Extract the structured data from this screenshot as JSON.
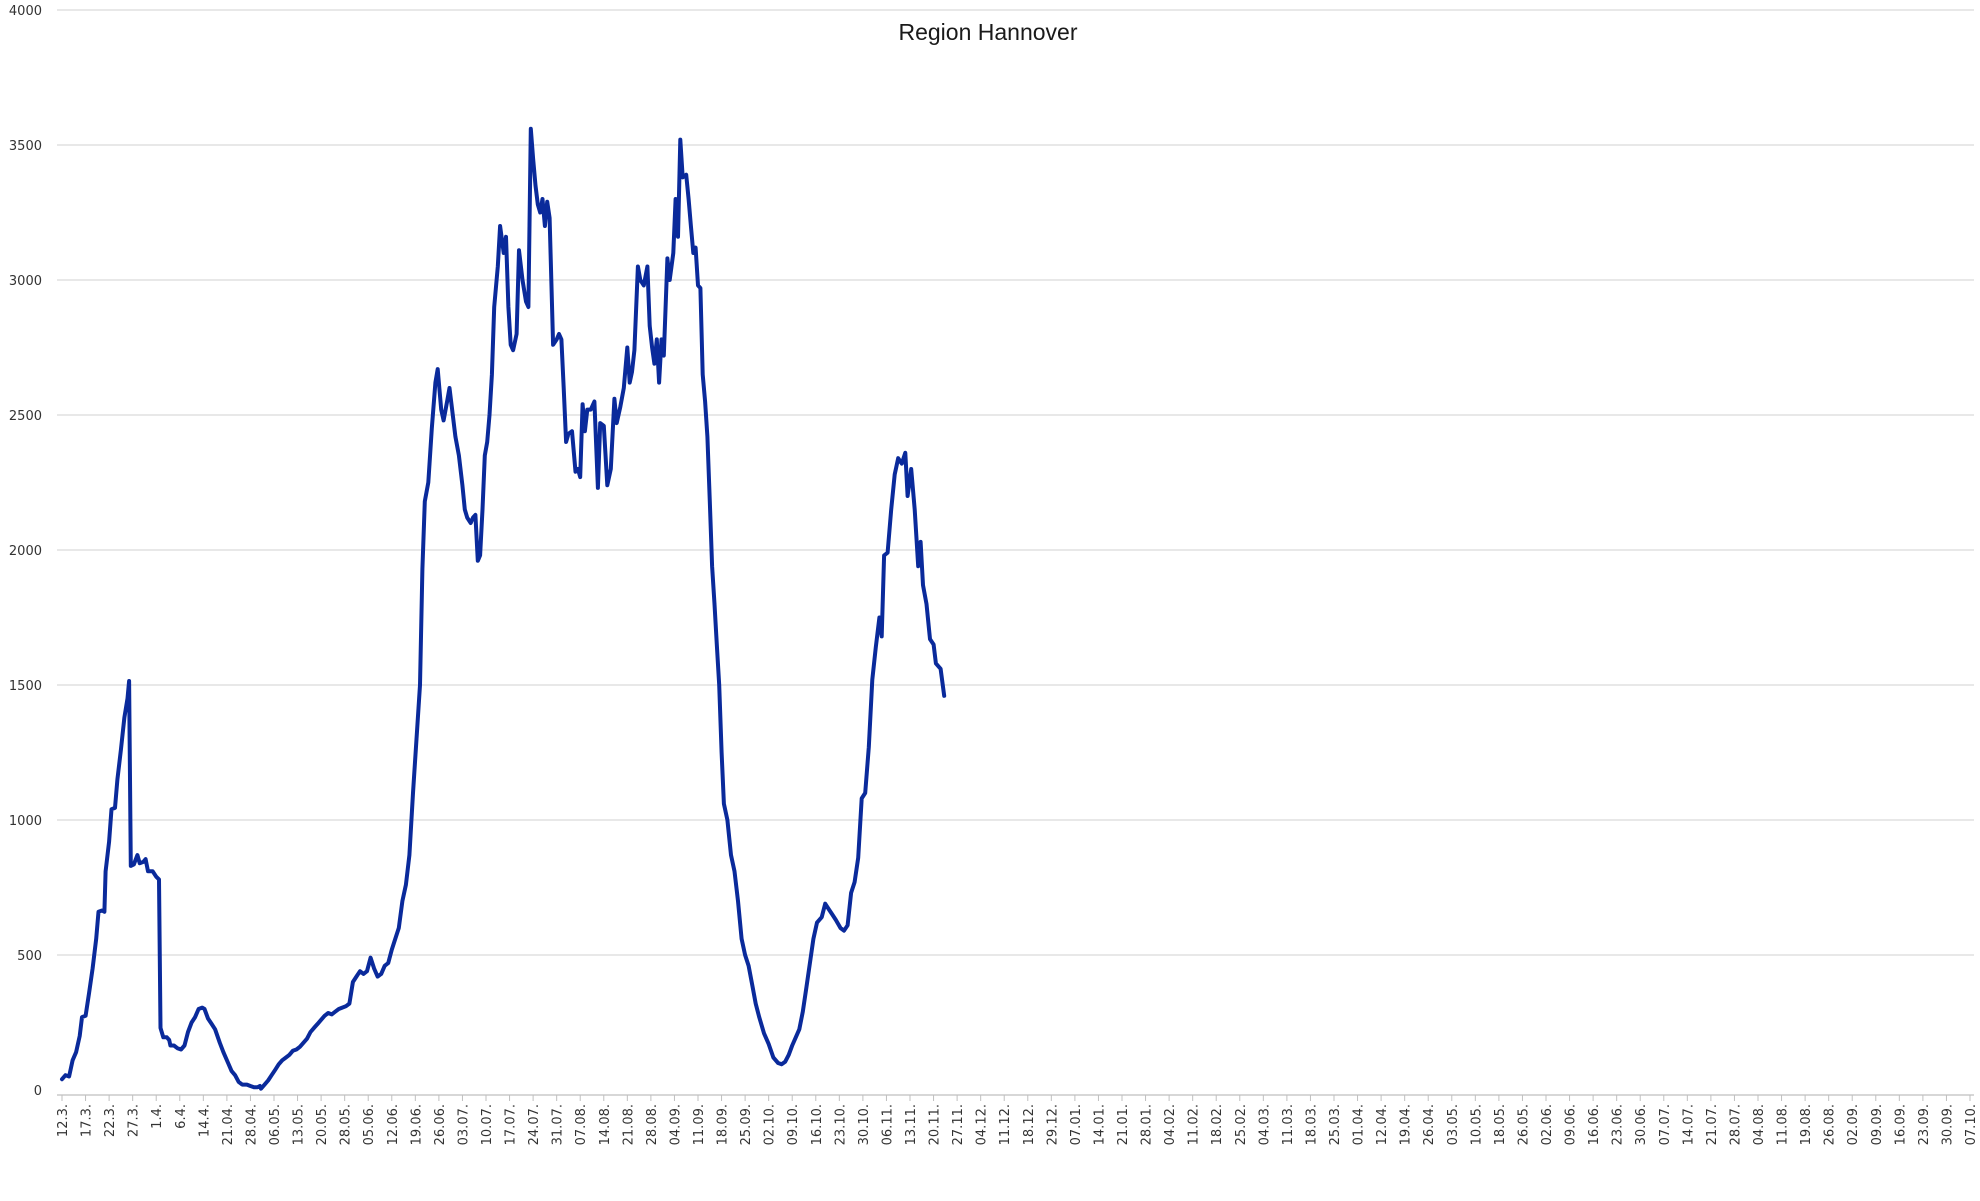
{
  "chart_data": {
    "type": "line",
    "title": "Region Hannover",
    "xlabel": "",
    "ylabel": "",
    "ylim": [
      0,
      4000
    ],
    "yticks": [
      0,
      500,
      1000,
      1500,
      2000,
      2500,
      3000,
      3500,
      4000
    ],
    "grid": true,
    "categories": [
      "12.3.",
      "17.3.",
      "22.3.",
      "27.3.",
      "1.4.",
      "6.4.",
      "14.4.",
      "21.04.",
      "28.04.",
      "06.05.",
      "13.05.",
      "20.05.",
      "28.05.",
      "05.06.",
      "12.06.",
      "19.06.",
      "26.06.",
      "03.07.",
      "10.07.",
      "17.07.",
      "24.07.",
      "31.07.",
      "07.08.",
      "14.08.",
      "21.08.",
      "28.08.",
      "04.09.",
      "11.09.",
      "18.09.",
      "25.09.",
      "02.10.",
      "09.10.",
      "16.10.",
      "23.10.",
      "30.10.",
      "06.11.",
      "13.11.",
      "20.11.",
      "27.11.",
      "04.12.",
      "11.12.",
      "18.12.",
      "29.12.",
      "07.01.",
      "14.01.",
      "21.01.",
      "28.01.",
      "04.02.",
      "11.02.",
      "18.02.",
      "25.02.",
      "04.03.",
      "11.03.",
      "18.03.",
      "25.03.",
      "01.04.",
      "12.04.",
      "19.04.",
      "26.04.",
      "03.05.",
      "10.05.",
      "18.05.",
      "26.05.",
      "02.06.",
      "09.06.",
      "16.06.",
      "23.06.",
      "30.06.",
      "07.07.",
      "14.07.",
      "21.07.",
      "28.07.",
      "04.08.",
      "11.08.",
      "19.08.",
      "26.08.",
      "02.09.",
      "09.09.",
      "16.09.",
      "23.09.",
      "30.09.",
      "07.10."
    ],
    "series": [
      {
        "color": "#0a2a9b",
        "values": [
          [
            0,
            40
          ],
          [
            0.15,
            55
          ],
          [
            0.3,
            50
          ],
          [
            0.45,
            110
          ],
          [
            0.6,
            140
          ],
          [
            0.75,
            200
          ],
          [
            0.85,
            270
          ],
          [
            1.0,
            275
          ],
          [
            1.15,
            360
          ],
          [
            1.3,
            450
          ],
          [
            1.45,
            560
          ],
          [
            1.55,
            660
          ],
          [
            1.7,
            665
          ],
          [
            1.8,
            660
          ],
          [
            1.85,
            810
          ],
          [
            2.0,
            920
          ],
          [
            2.1,
            1040
          ],
          [
            2.25,
            1045
          ],
          [
            2.35,
            1150
          ],
          [
            2.5,
            1260
          ],
          [
            2.65,
            1380
          ],
          [
            2.78,
            1450
          ],
          [
            2.85,
            1515
          ],
          [
            2.92,
            830
          ],
          [
            3.05,
            835
          ],
          [
            3.2,
            870
          ],
          [
            3.3,
            840
          ],
          [
            3.45,
            845
          ],
          [
            3.55,
            855
          ],
          [
            3.65,
            810
          ],
          [
            3.85,
            810
          ],
          [
            4.0,
            790
          ],
          [
            4.12,
            780
          ],
          [
            4.18,
            230
          ],
          [
            4.3,
            195
          ],
          [
            4.45,
            195
          ],
          [
            4.55,
            185
          ],
          [
            4.6,
            165
          ],
          [
            4.75,
            165
          ],
          [
            4.9,
            155
          ],
          [
            5.05,
            150
          ],
          [
            5.2,
            165
          ],
          [
            5.35,
            215
          ],
          [
            5.5,
            250
          ],
          [
            5.65,
            270
          ],
          [
            5.8,
            300
          ],
          [
            5.95,
            305
          ],
          [
            6.05,
            300
          ],
          [
            6.2,
            265
          ],
          [
            6.35,
            245
          ],
          [
            6.5,
            225
          ],
          [
            6.7,
            175
          ],
          [
            6.85,
            140
          ],
          [
            7.05,
            100
          ],
          [
            7.2,
            70
          ],
          [
            7.35,
            55
          ],
          [
            7.5,
            30
          ],
          [
            7.65,
            20
          ],
          [
            7.85,
            20
          ],
          [
            8.0,
            15
          ],
          [
            8.15,
            10
          ],
          [
            8.3,
            10
          ],
          [
            8.4,
            15
          ],
          [
            8.45,
            5
          ],
          [
            8.6,
            20
          ],
          [
            8.75,
            35
          ],
          [
            8.9,
            55
          ],
          [
            9.05,
            75
          ],
          [
            9.2,
            95
          ],
          [
            9.35,
            110
          ],
          [
            9.5,
            120
          ],
          [
            9.65,
            130
          ],
          [
            9.8,
            145
          ],
          [
            9.95,
            150
          ],
          [
            10.1,
            160
          ],
          [
            10.25,
            175
          ],
          [
            10.4,
            190
          ],
          [
            10.55,
            215
          ],
          [
            10.7,
            230
          ],
          [
            10.85,
            245
          ],
          [
            11.0,
            260
          ],
          [
            11.15,
            275
          ],
          [
            11.3,
            285
          ],
          [
            11.45,
            280
          ],
          [
            11.6,
            290
          ],
          [
            11.75,
            300
          ],
          [
            11.9,
            305
          ],
          [
            12.05,
            310
          ],
          [
            12.2,
            320
          ],
          [
            12.35,
            400
          ],
          [
            12.5,
            420
          ],
          [
            12.65,
            440
          ],
          [
            12.8,
            430
          ],
          [
            12.95,
            440
          ],
          [
            13.1,
            490
          ],
          [
            13.25,
            450
          ],
          [
            13.4,
            420
          ],
          [
            13.55,
            430
          ],
          [
            13.7,
            460
          ],
          [
            13.85,
            470
          ],
          [
            14.0,
            520
          ],
          [
            14.15,
            560
          ],
          [
            14.3,
            600
          ],
          [
            14.45,
            700
          ],
          [
            14.6,
            760
          ],
          [
            14.75,
            870
          ],
          [
            14.9,
            1100
          ],
          [
            15.05,
            1300
          ],
          [
            15.2,
            1500
          ],
          [
            15.3,
            1930
          ],
          [
            15.4,
            2180
          ],
          [
            15.55,
            2250
          ],
          [
            15.7,
            2450
          ],
          [
            15.85,
            2620
          ],
          [
            15.95,
            2670
          ],
          [
            16.1,
            2520
          ],
          [
            16.2,
            2480
          ],
          [
            16.35,
            2550
          ],
          [
            16.45,
            2600
          ],
          [
            16.55,
            2530
          ],
          [
            16.7,
            2420
          ],
          [
            16.85,
            2350
          ],
          [
            17.0,
            2240
          ],
          [
            17.1,
            2150
          ],
          [
            17.2,
            2120
          ],
          [
            17.35,
            2100
          ],
          [
            17.45,
            2120
          ],
          [
            17.55,
            2130
          ],
          [
            17.65,
            1960
          ],
          [
            17.75,
            1980
          ],
          [
            17.85,
            2150
          ],
          [
            17.95,
            2350
          ],
          [
            18.05,
            2400
          ],
          [
            18.15,
            2500
          ],
          [
            18.25,
            2650
          ],
          [
            18.35,
            2900
          ],
          [
            18.5,
            3050
          ],
          [
            18.6,
            3200
          ],
          [
            18.75,
            3100
          ],
          [
            18.85,
            3160
          ],
          [
            18.95,
            2900
          ],
          [
            19.05,
            2760
          ],
          [
            19.15,
            2740
          ],
          [
            19.3,
            2800
          ],
          [
            19.4,
            3110
          ],
          [
            19.55,
            3000
          ],
          [
            19.7,
            2920
          ],
          [
            19.8,
            2900
          ],
          [
            19.9,
            3560
          ],
          [
            20.0,
            3450
          ],
          [
            20.1,
            3350
          ],
          [
            20.2,
            3280
          ],
          [
            20.3,
            3250
          ],
          [
            20.4,
            3300
          ],
          [
            20.5,
            3200
          ],
          [
            20.6,
            3290
          ],
          [
            20.7,
            3230
          ],
          [
            20.85,
            2760
          ],
          [
            21.0,
            2780
          ],
          [
            21.1,
            2800
          ],
          [
            21.2,
            2780
          ],
          [
            21.3,
            2600
          ],
          [
            21.4,
            2400
          ],
          [
            21.5,
            2430
          ],
          [
            21.65,
            2440
          ],
          [
            21.8,
            2290
          ],
          [
            21.9,
            2300
          ],
          [
            22.0,
            2270
          ],
          [
            22.1,
            2540
          ],
          [
            22.2,
            2440
          ],
          [
            22.3,
            2520
          ],
          [
            22.45,
            2520
          ],
          [
            22.6,
            2550
          ],
          [
            22.75,
            2230
          ],
          [
            22.85,
            2470
          ],
          [
            23.0,
            2460
          ],
          [
            23.15,
            2240
          ],
          [
            23.3,
            2300
          ],
          [
            23.45,
            2560
          ],
          [
            23.55,
            2470
          ],
          [
            23.7,
            2530
          ],
          [
            23.85,
            2600
          ],
          [
            24.0,
            2750
          ],
          [
            24.1,
            2620
          ],
          [
            24.2,
            2660
          ],
          [
            24.3,
            2740
          ],
          [
            24.45,
            3050
          ],
          [
            24.55,
            3000
          ],
          [
            24.7,
            2980
          ],
          [
            24.85,
            3050
          ],
          [
            24.95,
            2830
          ],
          [
            25.05,
            2750
          ],
          [
            25.15,
            2690
          ],
          [
            25.25,
            2780
          ],
          [
            25.35,
            2620
          ],
          [
            25.45,
            2780
          ],
          [
            25.55,
            2720
          ],
          [
            25.7,
            3080
          ],
          [
            25.8,
            3000
          ],
          [
            25.95,
            3100
          ],
          [
            26.05,
            3300
          ],
          [
            26.15,
            3160
          ],
          [
            26.25,
            3520
          ],
          [
            26.35,
            3380
          ],
          [
            26.5,
            3390
          ],
          [
            26.6,
            3300
          ],
          [
            26.7,
            3200
          ],
          [
            26.8,
            3100
          ],
          [
            26.9,
            3120
          ],
          [
            27.0,
            2980
          ],
          [
            27.1,
            2970
          ],
          [
            27.2,
            2650
          ],
          [
            27.3,
            2550
          ],
          [
            27.4,
            2420
          ],
          [
            27.5,
            2180
          ],
          [
            27.6,
            1940
          ],
          [
            27.7,
            1800
          ],
          [
            27.8,
            1650
          ],
          [
            27.9,
            1500
          ],
          [
            28.0,
            1250
          ],
          [
            28.1,
            1060
          ],
          [
            28.25,
            1000
          ],
          [
            28.4,
            870
          ],
          [
            28.55,
            810
          ],
          [
            28.7,
            700
          ],
          [
            28.85,
            560
          ],
          [
            29.0,
            500
          ],
          [
            29.15,
            460
          ],
          [
            29.3,
            390
          ],
          [
            29.45,
            320
          ],
          [
            29.6,
            270
          ],
          [
            29.8,
            210
          ],
          [
            30.0,
            170
          ],
          [
            30.2,
            120
          ],
          [
            30.4,
            100
          ],
          [
            30.55,
            95
          ],
          [
            30.7,
            105
          ],
          [
            30.85,
            130
          ],
          [
            31.0,
            165
          ],
          [
            31.15,
            195
          ],
          [
            31.3,
            225
          ],
          [
            31.45,
            290
          ],
          [
            31.6,
            380
          ],
          [
            31.75,
            470
          ],
          [
            31.9,
            560
          ],
          [
            32.05,
            620
          ],
          [
            32.25,
            640
          ],
          [
            32.4,
            690
          ],
          [
            32.55,
            670
          ],
          [
            32.7,
            650
          ],
          [
            32.85,
            630
          ],
          [
            33.05,
            600
          ],
          [
            33.2,
            590
          ],
          [
            33.35,
            610
          ],
          [
            33.5,
            730
          ],
          [
            33.65,
            770
          ],
          [
            33.8,
            860
          ],
          [
            33.95,
            1080
          ],
          [
            34.1,
            1100
          ],
          [
            34.25,
            1270
          ],
          [
            34.4,
            1520
          ],
          [
            34.55,
            1640
          ],
          [
            34.7,
            1750
          ],
          [
            34.8,
            1680
          ],
          [
            34.9,
            1980
          ],
          [
            35.05,
            1990
          ],
          [
            35.2,
            2150
          ],
          [
            35.35,
            2280
          ],
          [
            35.5,
            2340
          ],
          [
            35.65,
            2320
          ],
          [
            35.8,
            2360
          ],
          [
            35.9,
            2200
          ],
          [
            36.05,
            2300
          ],
          [
            36.2,
            2150
          ],
          [
            36.35,
            1940
          ],
          [
            36.45,
            2030
          ],
          [
            36.55,
            1870
          ],
          [
            36.7,
            1800
          ],
          [
            36.85,
            1670
          ],
          [
            37.0,
            1650
          ],
          [
            37.1,
            1580
          ],
          [
            37.3,
            1560
          ],
          [
            37.45,
            1460
          ]
        ]
      }
    ]
  }
}
